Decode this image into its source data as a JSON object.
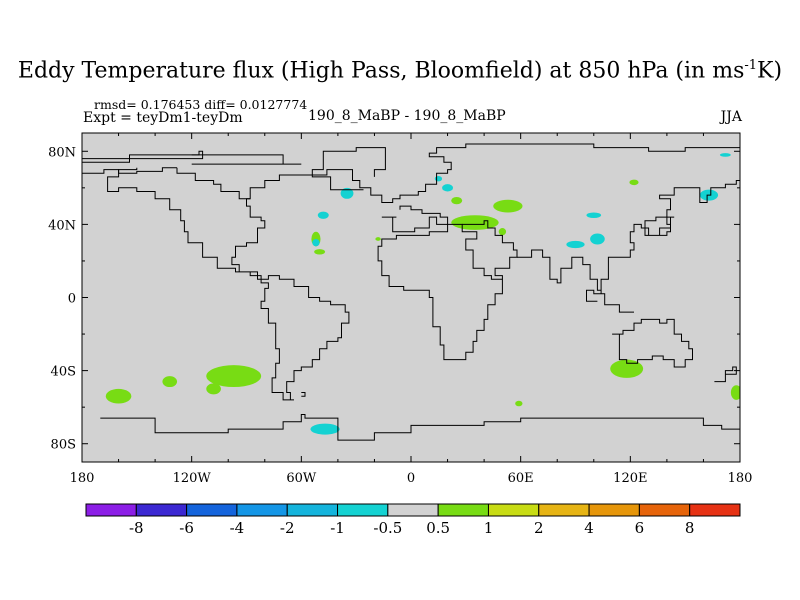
{
  "chart_data": {
    "type": "heatmap",
    "title_main": "Eddy Temperature flux (High Pass, Bloomfield) at 850 hPa (in ms",
    "title_sup": "-1",
    "title_end": "K)",
    "stats": "rmsd= 0.176453 diff= 0.0127774",
    "expt": "Expt = teyDm1-teyDm",
    "runs": "190_8_MaBP - 190_8_MaBP",
    "season": "JJA",
    "xlim": [
      -180,
      180
    ],
    "ylim": [
      -90,
      90
    ],
    "x_ticks": [
      {
        "value": -180,
        "label": "180"
      },
      {
        "value": -120,
        "label": "120W"
      },
      {
        "value": -60,
        "label": "60W"
      },
      {
        "value": 0,
        "label": "0"
      },
      {
        "value": 60,
        "label": "60E"
      },
      {
        "value": 120,
        "label": "120E"
      },
      {
        "value": 180,
        "label": "180"
      }
    ],
    "y_ticks": [
      {
        "value": 80,
        "label": "80N"
      },
      {
        "value": 40,
        "label": "40N"
      },
      {
        "value": 0,
        "label": "0"
      },
      {
        "value": -40,
        "label": "40S"
      },
      {
        "value": -80,
        "label": "80S"
      }
    ],
    "background_color": "#d2d2d2",
    "colorbar": {
      "colors": [
        "#8c1ee6",
        "#3c28d2",
        "#1464dc",
        "#1496e6",
        "#14b4dc",
        "#14d2d2",
        "#d2d2d2",
        "#78dc14",
        "#c8dc14",
        "#e6b414",
        "#e6960a",
        "#e6640a",
        "#e63214"
      ],
      "labels": [
        "-8",
        "-6",
        "-4",
        "-2",
        "-1",
        "-0.5",
        "0.5",
        "1",
        "2",
        "4",
        "6",
        "8"
      ]
    },
    "patches": [
      {
        "color": "#78dc14",
        "lon": -160,
        "lat": -54,
        "rlon": 7,
        "rlat": 4
      },
      {
        "color": "#78dc14",
        "lon": -132,
        "lat": -46,
        "rlon": 4,
        "rlat": 3
      },
      {
        "color": "#78dc14",
        "lon": -97,
        "lat": -43,
        "rlon": 15,
        "rlat": 6
      },
      {
        "color": "#78dc14",
        "lon": -108,
        "lat": -50,
        "rlon": 4,
        "rlat": 3
      },
      {
        "color": "#78dc14",
        "lon": 118,
        "lat": -39,
        "rlon": 9,
        "rlat": 5
      },
      {
        "color": "#78dc14",
        "lon": 178,
        "lat": -52,
        "rlon": 3,
        "rlat": 4
      },
      {
        "color": "#78dc14",
        "lon": 59,
        "lat": -58,
        "rlon": 2,
        "rlat": 1.5
      },
      {
        "color": "#78dc14",
        "lon": 35,
        "lat": 41,
        "rlon": 13,
        "rlat": 4
      },
      {
        "color": "#78dc14",
        "lon": 53,
        "lat": 50,
        "rlon": 8,
        "rlat": 3.5
      },
      {
        "color": "#78dc14",
        "lon": 25,
        "lat": 53,
        "rlon": 3,
        "rlat": 2
      },
      {
        "color": "#78dc14",
        "lon": 122,
        "lat": 63,
        "rlon": 2.5,
        "rlat": 1.5
      },
      {
        "color": "#78dc14",
        "lon": -52,
        "lat": 32,
        "rlon": 2.5,
        "rlat": 4
      },
      {
        "color": "#78dc14",
        "lon": -50,
        "lat": 25,
        "rlon": 3,
        "rlat": 1.5
      },
      {
        "color": "#78dc14",
        "lon": 50,
        "lat": 36,
        "rlon": 2,
        "rlat": 2
      },
      {
        "color": "#78dc14",
        "lon": -18,
        "lat": 32,
        "rlon": 1.5,
        "rlat": 1
      },
      {
        "color": "#14d2d2",
        "lon": -35,
        "lat": 57,
        "rlon": 3.5,
        "rlat": 3
      },
      {
        "color": "#14d2d2",
        "lon": -48,
        "lat": 45,
        "rlon": 3,
        "rlat": 2
      },
      {
        "color": "#14d2d2",
        "lon": -52,
        "lat": 30,
        "rlon": 2,
        "rlat": 2
      },
      {
        "color": "#14d2d2",
        "lon": 20,
        "lat": 60,
        "rlon": 3,
        "rlat": 2
      },
      {
        "color": "#14d2d2",
        "lon": 100,
        "lat": 45,
        "rlon": 4,
        "rlat": 1.5
      },
      {
        "color": "#14d2d2",
        "lon": 90,
        "lat": 29,
        "rlon": 5,
        "rlat": 2
      },
      {
        "color": "#14d2d2",
        "lon": 102,
        "lat": 32,
        "rlon": 4,
        "rlat": 3
      },
      {
        "color": "#14d2d2",
        "lon": 163,
        "lat": 56,
        "rlon": 5,
        "rlat": 3
      },
      {
        "color": "#14d2d2",
        "lon": 172,
        "lat": 78,
        "rlon": 3,
        "rlat": 1
      },
      {
        "color": "#14d2d2",
        "lon": -47,
        "lat": -72,
        "rlon": 8,
        "rlat": 3
      },
      {
        "color": "#14d2d2",
        "lon": 15,
        "lat": 65,
        "rlon": 2,
        "rlat": 1.5
      }
    ],
    "coastlines": [
      [
        [
          -180,
          74
        ],
        [
          -154,
          74
        ],
        [
          -154,
          78
        ],
        [
          -126,
          78
        ],
        [
          -116,
          80
        ],
        [
          -114,
          80
        ],
        [
          -114,
          76
        ],
        [
          -180,
          76
        ]
      ],
      [
        [
          -120,
          73
        ],
        [
          -60,
          73
        ],
        [
          -70,
          78
        ],
        [
          -120,
          78
        ]
      ],
      [
        [
          -26,
          59
        ],
        [
          -34,
          59
        ],
        [
          -44,
          66
        ],
        [
          -54,
          70
        ],
        [
          -48,
          80
        ],
        [
          -30,
          82
        ],
        [
          -14,
          82
        ],
        [
          -14,
          70
        ],
        [
          -20,
          66
        ]
      ],
      [
        [
          -128,
          71
        ],
        [
          -128,
          68
        ],
        [
          -118,
          68
        ],
        [
          -118,
          64
        ],
        [
          -108,
          64
        ],
        [
          -108,
          62
        ],
        [
          -104,
          62
        ],
        [
          -104,
          58
        ],
        [
          -94,
          58
        ],
        [
          -94,
          54
        ],
        [
          -88,
          54
        ],
        [
          -88,
          60
        ],
        [
          -80,
          60
        ],
        [
          -80,
          64
        ],
        [
          -72,
          64
        ],
        [
          -72,
          67
        ],
        [
          -50,
          67
        ],
        [
          -46,
          70
        ],
        [
          -36,
          70
        ],
        [
          -32,
          64
        ],
        [
          -28,
          60
        ],
        [
          -22,
          56
        ],
        [
          -16,
          52
        ],
        [
          -10,
          54
        ],
        [
          -6,
          56
        ],
        [
          4,
          58
        ],
        [
          8,
          62
        ],
        [
          14,
          68
        ],
        [
          20,
          70
        ],
        [
          22,
          74
        ],
        [
          18,
          77
        ],
        [
          10,
          79
        ],
        [
          14,
          82
        ],
        [
          30,
          84
        ],
        [
          60,
          84
        ],
        [
          80,
          84
        ],
        [
          100,
          82
        ],
        [
          130,
          80
        ],
        [
          150,
          82
        ],
        [
          166,
          82
        ],
        [
          180,
          80
        ]
      ],
      [
        [
          -128,
          71
        ],
        [
          -136,
          69
        ],
        [
          -150,
          68
        ],
        [
          -160,
          70
        ],
        [
          -168,
          68
        ],
        [
          -180,
          66
        ]
      ],
      [
        [
          -88,
          54
        ],
        [
          -90,
          50
        ],
        [
          -88,
          44
        ],
        [
          -82,
          42
        ],
        [
          -80,
          38
        ],
        [
          -84,
          30
        ],
        [
          -90,
          28
        ],
        [
          -96,
          22
        ],
        [
          -98,
          18
        ],
        [
          -94,
          14
        ],
        [
          -88,
          12
        ],
        [
          -82,
          8
        ],
        [
          -78,
          5
        ],
        [
          -80,
          -2
        ],
        [
          -82,
          -6
        ],
        [
          -78,
          -14
        ],
        [
          -74,
          -20
        ],
        [
          -74,
          -28
        ],
        [
          -72,
          -36
        ],
        [
          -74,
          -44
        ],
        [
          -76,
          -52
        ],
        [
          -70,
          -56
        ],
        [
          -64,
          -56
        ],
        [
          -66,
          -52
        ],
        [
          -68,
          -46
        ],
        [
          -64,
          -40
        ],
        [
          -60,
          -38
        ],
        [
          -54,
          -34
        ],
        [
          -50,
          -28
        ],
        [
          -46,
          -24
        ],
        [
          -40,
          -22
        ],
        [
          -38,
          -14
        ],
        [
          -34,
          -8
        ],
        [
          -36,
          -4
        ],
        [
          -44,
          -2
        ],
        [
          -50,
          0
        ],
        [
          -56,
          6
        ],
        [
          -64,
          10
        ],
        [
          -72,
          12
        ],
        [
          -78,
          10
        ],
        [
          -84,
          14
        ],
        [
          -90,
          14
        ],
        [
          -96,
          16
        ],
        [
          -106,
          22
        ],
        [
          -114,
          30
        ],
        [
          -122,
          36
        ],
        [
          -124,
          42
        ],
        [
          -126,
          48
        ],
        [
          -132,
          54
        ],
        [
          -140,
          58
        ],
        [
          -150,
          60
        ],
        [
          -160,
          58
        ],
        [
          -166,
          60
        ],
        [
          -166,
          66
        ],
        [
          -160,
          70
        ],
        [
          -150,
          71
        ]
      ],
      [
        [
          -16,
          44
        ],
        [
          -8,
          44
        ],
        [
          -10,
          36
        ],
        [
          -4,
          36
        ],
        [
          2,
          38
        ],
        [
          10,
          44
        ],
        [
          14,
          40
        ],
        [
          18,
          40
        ],
        [
          20,
          36
        ],
        [
          10,
          34
        ],
        [
          0,
          34
        ],
        [
          -8,
          32
        ],
        [
          -16,
          28
        ],
        [
          -18,
          20
        ],
        [
          -16,
          12
        ],
        [
          -12,
          6
        ],
        [
          -4,
          4
        ],
        [
          6,
          4
        ],
        [
          10,
          0
        ],
        [
          12,
          -6
        ],
        [
          12,
          -16
        ],
        [
          16,
          -26
        ],
        [
          18,
          -34
        ],
        [
          24,
          -34
        ],
        [
          30,
          -30
        ],
        [
          34,
          -24
        ],
        [
          36,
          -18
        ],
        [
          40,
          -12
        ],
        [
          42,
          -4
        ],
        [
          46,
          2
        ],
        [
          50,
          10
        ],
        [
          44,
          12
        ],
        [
          40,
          16
        ],
        [
          34,
          26
        ],
        [
          30,
          32
        ],
        [
          36,
          36
        ],
        [
          28,
          40
        ],
        [
          24,
          40
        ],
        [
          20,
          44
        ],
        [
          16,
          46
        ],
        [
          6,
          48
        ],
        [
          0,
          50
        ],
        [
          -6,
          48
        ]
      ],
      [
        [
          28,
          40
        ],
        [
          40,
          42
        ],
        [
          42,
          38
        ],
        [
          46,
          34
        ],
        [
          50,
          30
        ],
        [
          56,
          26
        ],
        [
          58,
          22
        ],
        [
          54,
          16
        ],
        [
          46,
          12
        ],
        [
          50,
          10
        ]
      ],
      [
        [
          58,
          22
        ],
        [
          66,
          26
        ],
        [
          72,
          22
        ],
        [
          76,
          10
        ],
        [
          80,
          8
        ],
        [
          82,
          16
        ],
        [
          88,
          22
        ],
        [
          94,
          18
        ],
        [
          98,
          10
        ],
        [
          102,
          4
        ],
        [
          104,
          2
        ],
        [
          104,
          10
        ],
        [
          108,
          14
        ],
        [
          108,
          22
        ],
        [
          116,
          22
        ],
        [
          120,
          26
        ],
        [
          122,
          30
        ],
        [
          120,
          36
        ],
        [
          122,
          40
        ],
        [
          126,
          38
        ],
        [
          128,
          34
        ],
        [
          130,
          38
        ],
        [
          128,
          42
        ],
        [
          134,
          44
        ],
        [
          140,
          48
        ],
        [
          142,
          54
        ],
        [
          136,
          56
        ],
        [
          144,
          60
        ],
        [
          156,
          60
        ],
        [
          158,
          52
        ],
        [
          162,
          56
        ],
        [
          164,
          60
        ],
        [
          172,
          62
        ],
        [
          178,
          64
        ],
        [
          180,
          66
        ]
      ],
      [
        [
          102,
          -2
        ],
        [
          96,
          4
        ],
        [
          100,
          2
        ],
        [
          106,
          -4
        ],
        [
          114,
          -8
        ],
        [
          122,
          -8
        ]
      ],
      [
        [
          110,
          -20
        ],
        [
          114,
          -22
        ],
        [
          114,
          -34
        ],
        [
          118,
          -36
        ],
        [
          124,
          -34
        ],
        [
          132,
          -32
        ],
        [
          138,
          -34
        ],
        [
          144,
          -38
        ],
        [
          148,
          -38
        ],
        [
          150,
          -34
        ],
        [
          154,
          -28
        ],
        [
          152,
          -24
        ],
        [
          148,
          -20
        ],
        [
          144,
          -12
        ],
        [
          140,
          -14
        ],
        [
          136,
          -12
        ],
        [
          130,
          -12
        ],
        [
          126,
          -14
        ],
        [
          122,
          -18
        ],
        [
          116,
          -20
        ],
        [
          110,
          -20
        ]
      ],
      [
        [
          166,
          -46
        ],
        [
          172,
          -40
        ],
        [
          176,
          -38
        ],
        [
          178,
          -42
        ],
        [
          172,
          -46
        ],
        [
          168,
          -46
        ]
      ],
      [
        [
          -170,
          -66
        ],
        [
          -140,
          -74
        ],
        [
          -100,
          -72
        ],
        [
          -70,
          -68
        ],
        [
          -60,
          -64
        ],
        [
          -58,
          -66
        ],
        [
          -40,
          -78
        ],
        [
          -20,
          -74
        ],
        [
          0,
          -70
        ],
        [
          20,
          -70
        ],
        [
          40,
          -68
        ],
        [
          60,
          -66
        ],
        [
          80,
          -66
        ],
        [
          100,
          -66
        ],
        [
          120,
          -66
        ],
        [
          140,
          -66
        ],
        [
          160,
          -70
        ],
        [
          170,
          -72
        ],
        [
          180,
          -78
        ]
      ],
      [
        [
          130,
          34
        ],
        [
          140,
          36
        ],
        [
          142,
          40
        ],
        [
          140,
          44
        ],
        [
          144,
          44
        ],
        [
          142,
          38
        ],
        [
          136,
          34
        ]
      ],
      [
        [
          -60,
          -52
        ],
        [
          -58,
          -52
        ],
        [
          -58,
          -54
        ],
        [
          -60,
          -54
        ]
      ]
    ]
  }
}
